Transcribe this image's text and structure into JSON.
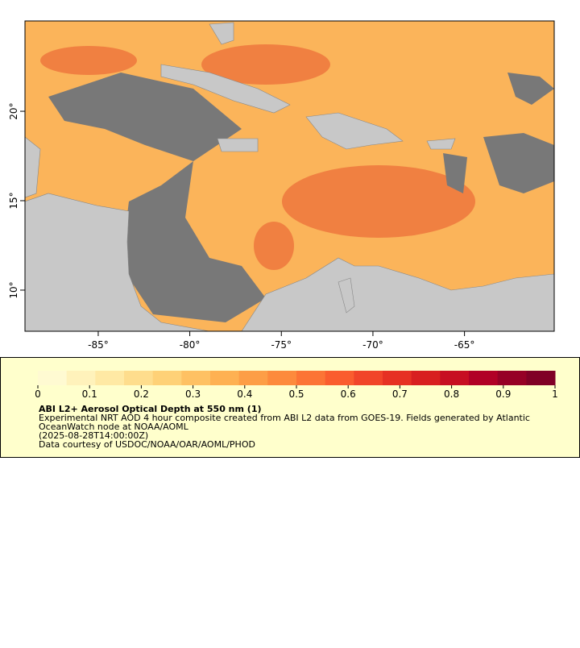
{
  "map": {
    "xlim": [
      -89.0,
      -60.1
    ],
    "ylim": [
      7.7,
      25.05
    ],
    "xticks": [
      {
        "value": -85,
        "label": "-85°"
      },
      {
        "value": -80,
        "label": "-80°"
      },
      {
        "value": -75,
        "label": "-75°"
      },
      {
        "value": -70,
        "label": "-70°"
      },
      {
        "value": -65,
        "label": "-65°"
      }
    ],
    "yticks": [
      {
        "value": 10,
        "label": "10°"
      },
      {
        "value": 15,
        "label": "15°"
      },
      {
        "value": 20,
        "label": "20°"
      }
    ],
    "colors": {
      "aerosol": "#fbb45a",
      "land": "#c8c8c8",
      "cloud": "#787878",
      "heavy": "#e8552e"
    }
  },
  "legend": {
    "colorbar_ticks": [
      0,
      0.1,
      0.2,
      0.3,
      0.4,
      0.5,
      0.6,
      0.7,
      0.8,
      0.9,
      1
    ],
    "colorbar_colors": [
      "#fffad2",
      "#fff2bb",
      "#ffe9a4",
      "#fedd8d",
      "#fed177",
      "#fec163",
      "#feb152",
      "#fd9e46",
      "#fd8a3c",
      "#fc7435",
      "#fa5d2e",
      "#f14529",
      "#e63123",
      "#d81f20",
      "#c70e22",
      "#b10026",
      "#960026",
      "#800026"
    ],
    "title": "ABI L2+ Aerosol Optical Depth at 550 nm (1)",
    "lines": [
      "Experimental NRT AOD 4 hour composite created from ABI L2 data from GOES-19. Fields generated by Atlantic",
      "OceanWatch node at NOAA/AOML",
      "(2025-08-28T14:00:00Z)",
      "Data courtesy of USDOC/NOAA/OAR/AOML/PHOD"
    ]
  }
}
